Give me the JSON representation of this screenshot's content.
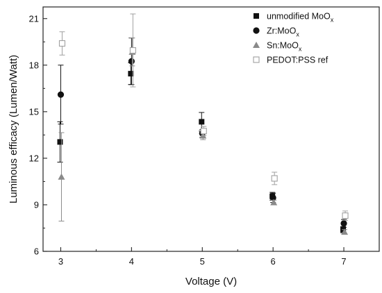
{
  "chart_data": {
    "type": "scatter",
    "xlabel": "Voltage (V)",
    "ylabel": "Luminous efficacy (Lumen/Watt)",
    "xlim": [
      2.75,
      7.5
    ],
    "ylim": [
      6,
      21.75
    ],
    "xticks": [
      3,
      4,
      5,
      6,
      7
    ],
    "yticks": [
      6,
      9,
      12,
      15,
      18,
      21
    ],
    "grid": false,
    "legend_position": "top-right",
    "x": [
      3,
      4,
      5,
      6,
      7
    ],
    "series": [
      {
        "name": "unmodified MoO",
        "name_subscript": "x",
        "marker": "square-filled",
        "color": "#111111",
        "values": [
          13.05,
          17.45,
          14.35,
          9.55,
          7.4
        ],
        "errors": [
          1.3,
          0.7,
          0.6,
          0.25,
          0.2
        ]
      },
      {
        "name": "Zr:MoO",
        "name_subscript": "x",
        "marker": "circle-filled",
        "color": "#111111",
        "values": [
          16.1,
          18.25,
          13.6,
          9.45,
          7.8
        ],
        "errors": [
          1.9,
          1.5,
          0.25,
          0.3,
          0.25
        ]
      },
      {
        "name": "Sn:MoO",
        "name_subscript": "x",
        "marker": "triangle-filled",
        "color": "#8a8a8a",
        "values": [
          10.8,
          18.85,
          13.45,
          9.15,
          7.25
        ],
        "errors": [
          2.85,
          0.9,
          0.25,
          0.15,
          0.15
        ]
      },
      {
        "name": "PEDOT:PSS ref",
        "name_subscript": "",
        "marker": "square-open",
        "color": "#a0a0a0",
        "values": [
          19.4,
          18.95,
          13.75,
          10.7,
          8.3
        ],
        "errors": [
          0.75,
          2.35,
          0.3,
          0.4,
          0.3
        ]
      }
    ]
  }
}
